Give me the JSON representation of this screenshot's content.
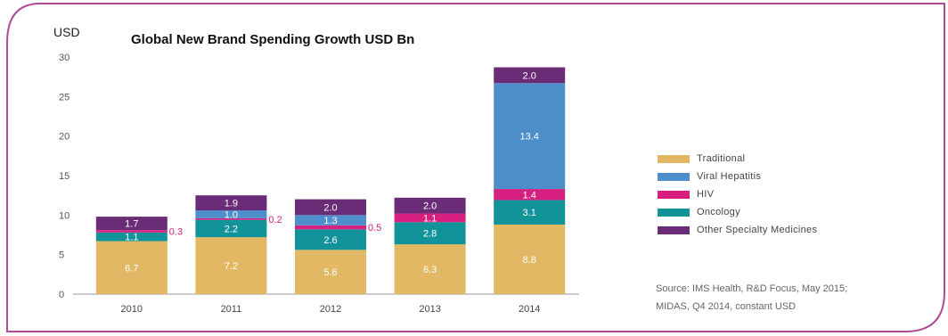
{
  "chart_data": {
    "type": "bar",
    "stacked": true,
    "title": "Global New Brand Spending Growth USD Bn",
    "ylabel": "USD",
    "xlabel": "",
    "ylim": [
      0,
      30
    ],
    "yticks": [
      "0",
      "5",
      "10",
      "15",
      "20",
      "25",
      "30"
    ],
    "categories": [
      "2010",
      "2011",
      "2012",
      "2013",
      "2014"
    ],
    "series": [
      {
        "name": "Traditional",
        "color": "#E2B865",
        "values": [
          6.7,
          7.2,
          5.6,
          6.3,
          8.8
        ],
        "labels": [
          "6.7",
          "7.2",
          "5.6",
          "6.3",
          "8.8"
        ]
      },
      {
        "name": "Oncology",
        "color": "#12939A",
        "values": [
          1.1,
          2.2,
          2.6,
          2.8,
          3.1
        ],
        "labels": [
          "1.1",
          "2.2",
          "2.6",
          "2.8",
          "3.1"
        ]
      },
      {
        "name": "HIV",
        "color": "#D61F7F",
        "values": [
          0.3,
          0.2,
          0.5,
          1.1,
          1.4
        ],
        "labels": [
          "0.3",
          "0.2",
          "0.5",
          "1.1",
          "1.4"
        ],
        "label_outside": [
          true,
          true,
          true,
          false,
          false
        ]
      },
      {
        "name": "Viral Hepatitis",
        "color": "#4E8FCB",
        "values": [
          0,
          1.0,
          1.3,
          0,
          13.4
        ],
        "labels": [
          "",
          "1.0",
          "1.3",
          "",
          "13.4"
        ]
      },
      {
        "name": "Other Specialty Medicines",
        "color": "#6B2C77",
        "values": [
          1.7,
          1.9,
          2.0,
          2.0,
          2.0
        ],
        "labels": [
          "1.7",
          "1.9",
          "2.0",
          "2.0",
          "2.0"
        ]
      }
    ],
    "legend": {
      "position": "right",
      "items": [
        {
          "label": "Traditional",
          "color": "#E2B865"
        },
        {
          "label": "Viral Hepatitis",
          "color": "#4E8FCB"
        },
        {
          "label": "HIV",
          "color": "#D61F7F"
        },
        {
          "label": "Oncology",
          "color": "#12939A"
        },
        {
          "label": "Other Specialty Medicines",
          "color": "#6B2C77"
        }
      ]
    },
    "grid": false
  },
  "source": {
    "line1": "Source: IMS Health, R&D Focus, May 2015;",
    "line2": "MIDAS, Q4 2014, constant USD"
  },
  "frame_color": "#B04A97"
}
